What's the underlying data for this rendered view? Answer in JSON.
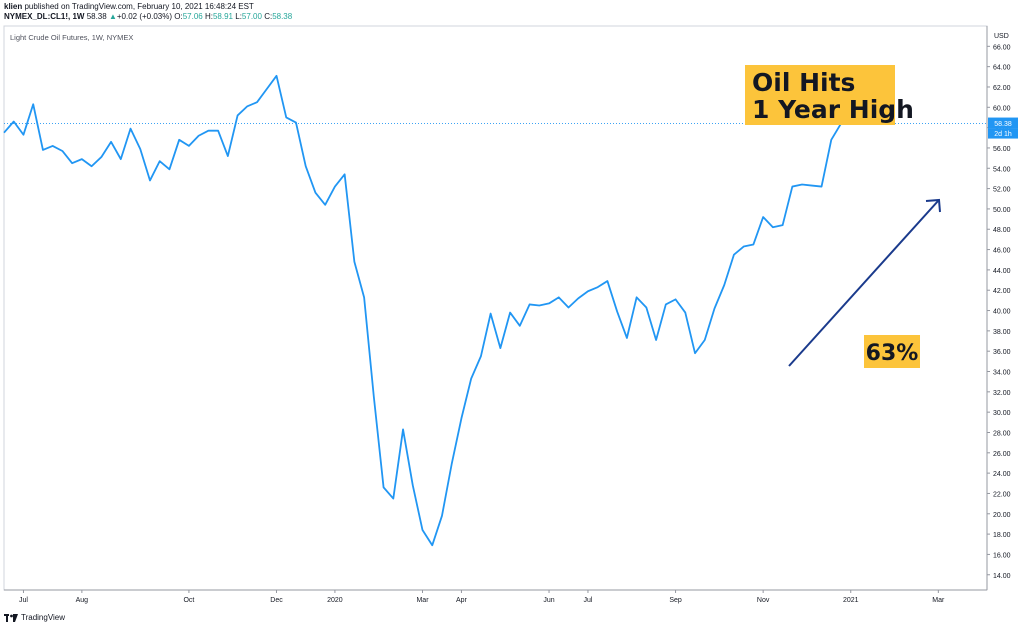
{
  "header": {
    "author": "klien",
    "published": "published on TradingView.com, February 10, 2021 16:48:24 EST",
    "symbol": "NYMEX_DL:CL1!, 1W",
    "last": "58.38",
    "change_arrow": "▲",
    "change": "+0.02 (+0.03%)",
    "o_label": "O:",
    "o": "57.06",
    "h_label": "H:",
    "h": "58.91",
    "l_label": "L:",
    "l": "57.00",
    "c_label": "C:",
    "c": "58.38"
  },
  "footer": {
    "brand": "TradingView"
  },
  "colors": {
    "line": "#2196f3",
    "annotation_bg": "#fcc43b",
    "arrow": "#1a3a8c",
    "price_label": "#2196f3",
    "gridline": "#e9ecf1"
  },
  "chart_data": {
    "type": "line",
    "title": "Light Crude Oil Futures, 1W, NYMEX",
    "ylabel": "USD",
    "ylim": [
      12.5,
      68
    ],
    "y_ticks": [
      "14.00",
      "16.00",
      "18.00",
      "20.00",
      "22.00",
      "24.00",
      "26.00",
      "28.00",
      "30.00",
      "32.00",
      "34.00",
      "36.00",
      "38.00",
      "40.00",
      "42.00",
      "44.00",
      "46.00",
      "48.00",
      "50.00",
      "52.00",
      "54.00",
      "56.00",
      "58.00",
      "60.00",
      "62.00",
      "64.00",
      "66.00"
    ],
    "x_ticks": [
      {
        "label": "Jul",
        "week": 2
      },
      {
        "label": "Aug",
        "week": 8
      },
      {
        "label": "Oct",
        "week": 19
      },
      {
        "label": "Dec",
        "week": 28
      },
      {
        "label": "2020",
        "week": 34
      },
      {
        "label": "Mar",
        "week": 43
      },
      {
        "label": "Apr",
        "week": 47
      },
      {
        "label": "Jun",
        "week": 56
      },
      {
        "label": "Jul",
        "week": 60
      },
      {
        "label": "Sep",
        "week": 69
      },
      {
        "label": "Nov",
        "week": 78
      },
      {
        "label": "2021",
        "week": 87
      },
      {
        "label": "Mar",
        "week": 96
      }
    ],
    "x_range": [
      0,
      101
    ],
    "last_price_label": "58.38",
    "countdown_label": "2d 1h",
    "series": [
      {
        "values": [
          57.5,
          58.6,
          57.3,
          60.3,
          55.8,
          56.2,
          55.7,
          54.5,
          54.9,
          54.2,
          55.1,
          56.6,
          54.9,
          57.9,
          55.9,
          52.8,
          54.7,
          53.9,
          56.8,
          56.2,
          57.2,
          57.7,
          57.7,
          55.2,
          59.2,
          60.1,
          60.5,
          61.8,
          63.1,
          59.0,
          58.5,
          54.2,
          51.6,
          50.4,
          52.2,
          53.4,
          44.8,
          41.3,
          31.5,
          22.6,
          21.5,
          28.3,
          22.8,
          18.4,
          16.9,
          19.8,
          24.9,
          29.4,
          33.3,
          35.5,
          39.7,
          36.3,
          39.8,
          38.5,
          40.6,
          40.5,
          40.7,
          41.3,
          40.3,
          41.2,
          41.9,
          42.3,
          42.9,
          39.9,
          37.3,
          41.3,
          40.3,
          37.1,
          40.6,
          41.1,
          39.8,
          35.8,
          37.1,
          40.2,
          42.5,
          45.5,
          46.3,
          46.5,
          49.2,
          48.2,
          48.4,
          52.2,
          52.4,
          52.3,
          52.2,
          56.8,
          58.4
        ]
      }
    ],
    "annotations": {
      "headline_line1": "Oil Hits",
      "headline_line2": "1 Year High",
      "percent": "63%"
    }
  }
}
